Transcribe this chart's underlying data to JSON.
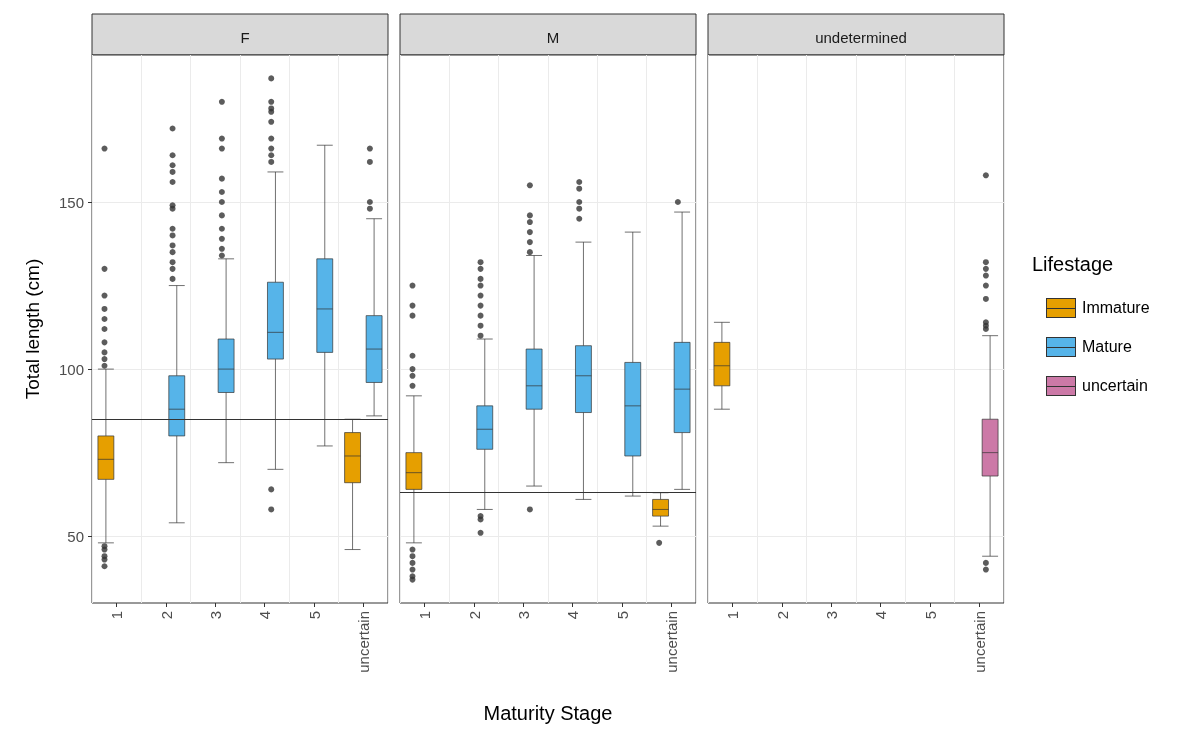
{
  "chart_data": [
    {
      "type": "box",
      "title": "F",
      "categories": [
        "1",
        "2",
        "3",
        "4",
        "5",
        "uncertain"
      ],
      "ylabel": "Total length (cm)",
      "ylim": [
        30,
        194
      ],
      "yticks": [
        50,
        100,
        150
      ],
      "grid": true,
      "ref_lines": [
        {
          "axis": "y",
          "value": 85
        }
      ],
      "series": [
        {
          "name": "Immature",
          "color": "#e69f00",
          "boxes": [
            {
              "low": 48,
              "q1": 67,
              "median": 73,
              "q3": 80,
              "high": 100,
              "outliers": [
                101,
                103,
                105,
                108,
                112,
                115,
                118,
                122,
                130,
                166,
                47,
                46,
                44,
                43,
                41
              ]
            },
            null,
            null,
            null,
            null,
            {
              "low": 46,
              "q1": 66,
              "median": 74,
              "q3": 81,
              "high": 85
            }
          ]
        },
        {
          "name": "Mature",
          "color": "#56b4e9",
          "boxes": [
            null,
            {
              "low": 54,
              "q1": 80,
              "median": 88,
              "q3": 98,
              "high": 125,
              "outliers": [
                127,
                130,
                132,
                135,
                137,
                140,
                142,
                148,
                149,
                156,
                159,
                161,
                164,
                172
              ]
            },
            {
              "low": 72,
              "q1": 93,
              "median": 100,
              "q3": 109,
              "high": 133,
              "outliers": [
                134,
                136,
                139,
                142,
                146,
                150,
                153,
                157,
                166,
                169,
                180
              ]
            },
            {
              "low": 70,
              "q1": 103,
              "median": 111,
              "q3": 126,
              "high": 159,
              "outliers": [
                64,
                58,
                162,
                164,
                166,
                169,
                174,
                177,
                178,
                180,
                187
              ]
            },
            {
              "low": 77,
              "q1": 105,
              "median": 118,
              "q3": 133,
              "high": 167
            },
            {
              "low": 86,
              "q1": 96,
              "median": 106,
              "q3": 116,
              "high": 145,
              "outliers": [
                148,
                150,
                162,
                166
              ]
            }
          ]
        }
      ]
    },
    {
      "type": "box",
      "title": "M",
      "categories": [
        "1",
        "2",
        "3",
        "4",
        "5",
        "uncertain"
      ],
      "xlabel": "Maturity Stage",
      "ylim": [
        30,
        194
      ],
      "yticks": [
        50,
        100,
        150
      ],
      "grid": true,
      "tick_labels": "x",
      "ref_lines": [
        {
          "axis": "y",
          "value": 63
        }
      ],
      "series": [
        {
          "color": "#e69f00",
          "boxes": [
            {
              "low": 48,
              "q1": 64,
              "median": 69,
              "q3": 75,
              "high": 92,
              "outliers": [
                95,
                98,
                100,
                104,
                116,
                119,
                125,
                46,
                44,
                42,
                40,
                38,
                37
              ]
            },
            null,
            null,
            null,
            null,
            {
              "low": 53,
              "q1": 56,
              "median": 58,
              "q3": 61,
              "high": 63,
              "outliers": [
                48
              ]
            }
          ]
        },
        {
          "color": "#56b4e9",
          "boxes": [
            null,
            {
              "low": 58,
              "q1": 76,
              "median": 82,
              "q3": 89,
              "high": 109,
              "outliers": [
                110,
                113,
                116,
                119,
                122,
                125,
                127,
                130,
                132,
                56,
                55,
                51
              ]
            },
            {
              "low": 65,
              "q1": 88,
              "median": 95,
              "q3": 106,
              "high": 134,
              "outliers": [
                58,
                135,
                138,
                141,
                144,
                146,
                155
              ]
            },
            {
              "low": 61,
              "q1": 87,
              "median": 98,
              "q3": 107,
              "high": 138,
              "outliers": [
                145,
                148,
                150,
                154,
                156
              ]
            },
            {
              "low": 62,
              "q1": 74,
              "median": 89,
              "q3": 102,
              "high": 141
            },
            {
              "low": 64,
              "q1": 81,
              "median": 94,
              "q3": 108,
              "high": 147,
              "outliers": [
                150
              ]
            }
          ]
        }
      ]
    },
    {
      "type": "box",
      "title": "undetermined",
      "categories": [
        "1",
        "2",
        "3",
        "4",
        "5",
        "uncertain"
      ],
      "ylim": [
        30,
        194
      ],
      "yticks": [
        50,
        100,
        150
      ],
      "grid": true,
      "tick_labels": "x",
      "legend": "right",
      "legend_title": "Lifestage",
      "series": [
        {
          "color": "#e69f00",
          "boxes": [
            {
              "low": 88,
              "q1": 95,
              "median": 101,
              "q3": 108,
              "high": 114
            },
            null,
            null,
            null,
            null,
            null
          ]
        },
        {
          "name": "uncertain",
          "color": "#cc79a7",
          "boxes": [
            null,
            null,
            null,
            null,
            null,
            {
              "low": 44,
              "q1": 68,
              "median": 75,
              "q3": 85,
              "high": 110,
              "outliers": [
                42,
                40,
                112,
                113,
                114,
                121,
                125,
                128,
                130,
                132,
                158
              ]
            }
          ]
        }
      ]
    }
  ]
}
